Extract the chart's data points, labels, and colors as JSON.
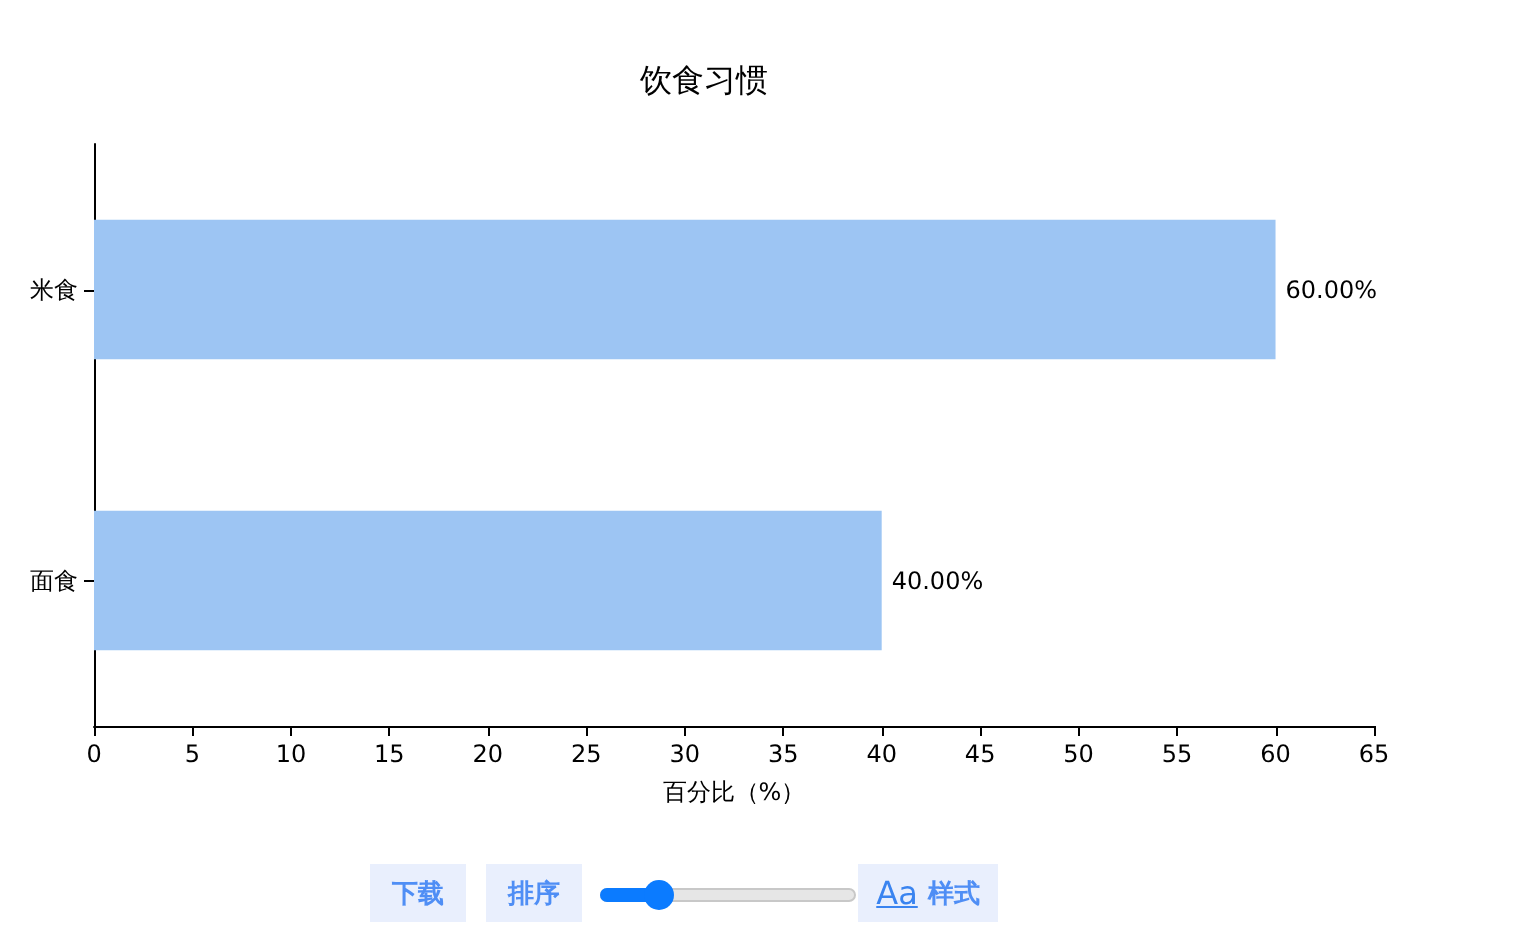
{
  "chart_data": {
    "type": "bar",
    "orientation": "horizontal",
    "title": "饮食习惯",
    "xlabel": "百分比（%）",
    "categories": [
      "米食",
      "面食"
    ],
    "values": [
      60,
      40
    ],
    "value_labels": [
      "60.00%",
      "40.00%"
    ],
    "color": "#9dc5f3",
    "xlim": [
      0,
      65
    ],
    "xticks": [
      0,
      5,
      10,
      15,
      20,
      25,
      30,
      35,
      40,
      45,
      50,
      55,
      60,
      65
    ],
    "annotations": [
      "下载",
      "排序",
      "Aa",
      "样式"
    ]
  }
}
